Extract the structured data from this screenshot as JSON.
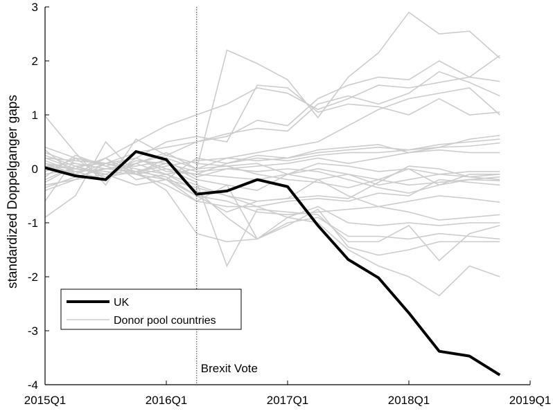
{
  "chart_data": {
    "type": "line",
    "xlabel": "",
    "ylabel": "standardized Doppelganger gaps",
    "ylim": [
      -4,
      3
    ],
    "x_quarters": [
      "2015Q1",
      "2015Q2",
      "2015Q3",
      "2015Q4",
      "2016Q1",
      "2016Q2",
      "2016Q3",
      "2016Q4",
      "2017Q1",
      "2017Q2",
      "2017Q3",
      "2017Q4",
      "2018Q1",
      "2018Q2",
      "2018Q3",
      "2018Q4"
    ],
    "x_ticks": [
      "2015Q1",
      "2016Q1",
      "2017Q1",
      "2018Q1",
      "2019Q1"
    ],
    "x_range": [
      "2015Q1",
      "2019Q1"
    ],
    "y_ticks": [
      "3",
      "2",
      "1",
      "0",
      "-1",
      "-2",
      "-3",
      "-4"
    ],
    "y_tick_values": [
      3,
      2,
      1,
      0,
      -1,
      -2,
      -3,
      -4
    ],
    "grid": false,
    "legend_position": "bottom-left",
    "annotation": {
      "label": "Brexit Vote",
      "x": "2016Q2"
    },
    "highlight_series": {
      "name": "UK",
      "color": "#000000",
      "values": [
        0.02,
        -0.13,
        -0.2,
        0.32,
        0.17,
        -0.47,
        -0.41,
        -0.2,
        -0.33,
        -1.05,
        -1.68,
        -2.02,
        -2.67,
        -3.38,
        -3.47,
        -3.82
      ]
    },
    "donor_series_name": "Donor pool countries",
    "donor_color": "#cccccc",
    "donor_series": [
      [
        0.98,
        0.3,
        -0.3,
        0.55,
        0.25,
        0.1,
        0.05,
        -0.1,
        -0.2,
        -0.25,
        -0.35,
        -0.2,
        -0.3,
        -0.25,
        -0.2,
        -0.15
      ],
      [
        -0.9,
        -0.5,
        0.5,
        -0.1,
        0.2,
        0.0,
        2.2,
        1.95,
        1.65,
        0.95,
        1.7,
        2.15,
        2.9,
        2.5,
        2.55,
        2.05
      ],
      [
        0.2,
        0.15,
        0.1,
        0.3,
        0.4,
        0.5,
        0.6,
        0.9,
        0.8,
        1.3,
        1.55,
        1.7,
        1.65,
        2.0,
        1.7,
        2.1
      ],
      [
        0.35,
        -0.1,
        0.2,
        0.5,
        0.8,
        1.0,
        1.2,
        1.5,
        1.4,
        1.1,
        1.3,
        1.55,
        1.5,
        1.6,
        1.7,
        1.62
      ],
      [
        0.1,
        0.0,
        -0.1,
        0.1,
        0.25,
        0.5,
        0.65,
        0.75,
        0.7,
        1.2,
        1.35,
        1.2,
        1.4,
        1.8,
        1.6,
        1.35
      ],
      [
        -0.6,
        0.2,
        -0.2,
        0.2,
        0.5,
        0.6,
        0.5,
        1.55,
        1.5,
        1.05,
        1.2,
        1.15,
        1.0,
        1.3,
        1.0,
        1.05
      ],
      [
        0.05,
        0.1,
        0.0,
        0.1,
        0.3,
        0.0,
        0.2,
        0.3,
        0.4,
        0.5,
        0.8,
        1.1,
        1.3,
        1.4,
        1.5,
        1.0
      ],
      [
        -0.3,
        -0.2,
        0.1,
        0.0,
        -0.2,
        0.2,
        0.1,
        0.25,
        0.2,
        0.35,
        0.4,
        0.45,
        0.3,
        0.4,
        0.55,
        0.62
      ],
      [
        0.25,
        0.05,
        -0.15,
        -0.05,
        0.05,
        0.15,
        0.2,
        0.15,
        0.2,
        0.3,
        0.35,
        0.4,
        0.35,
        0.45,
        0.5,
        0.55
      ],
      [
        -0.15,
        0.25,
        0.05,
        0.2,
        0.0,
        -0.1,
        0.1,
        0.2,
        0.15,
        0.25,
        0.3,
        0.3,
        0.35,
        0.4,
        0.42,
        0.48
      ],
      [
        0.1,
        -0.1,
        0.2,
        -0.2,
        -0.1,
        0.0,
        0.05,
        0.1,
        -0.1,
        0.1,
        0.05,
        -0.05,
        0.0,
        -0.1,
        -0.05,
        -0.05
      ],
      [
        -0.2,
        0.05,
        -0.1,
        0.15,
        0.1,
        -0.2,
        -0.3,
        -0.4,
        -0.1,
        -0.2,
        -0.1,
        -0.3,
        -0.2,
        -0.1,
        -0.15,
        -0.1
      ],
      [
        0.05,
        -0.1,
        0.1,
        0.0,
        -0.1,
        -0.3,
        -0.5,
        -0.6,
        -0.55,
        -0.5,
        -0.55,
        -0.25,
        0.05,
        0.0,
        -0.15,
        -0.2
      ],
      [
        0.2,
        0.0,
        -0.05,
        -0.1,
        -0.2,
        -0.35,
        -0.5,
        -0.7,
        -0.6,
        -0.55,
        -0.6,
        -0.45,
        -0.5,
        -0.2,
        -0.25,
        -0.3
      ],
      [
        -0.4,
        -0.2,
        -0.1,
        -0.3,
        -0.2,
        -0.5,
        -0.6,
        -0.8,
        -0.85,
        -0.8,
        -0.75,
        -0.7,
        -0.6,
        -0.5,
        -0.55,
        -0.62
      ],
      [
        0.3,
        0.1,
        0.0,
        -0.05,
        -0.15,
        -0.5,
        -0.8,
        -0.6,
        -0.55,
        -0.2,
        -0.5,
        -0.7,
        -0.8,
        -0.95,
        -0.9,
        -0.85
      ],
      [
        -0.1,
        0.0,
        0.2,
        -0.1,
        -0.3,
        -0.6,
        -0.3,
        -1.3,
        -0.9,
        -0.7,
        -1.0,
        -1.05,
        -1.0,
        -1.05,
        -1.0,
        -1.0
      ],
      [
        0.15,
        -0.05,
        -0.2,
        0.1,
        -0.1,
        -0.4,
        -0.9,
        -1.3,
        -1.0,
        -0.9,
        -1.25,
        -1.25,
        -1.3,
        -1.2,
        -1.25,
        -1.3
      ],
      [
        -0.05,
        0.2,
        0.05,
        -0.1,
        0.0,
        -0.25,
        -1.8,
        -0.75,
        -0.8,
        -0.85,
        -1.35,
        -1.35,
        -1.05,
        -1.7,
        -1.2,
        -1.05
      ],
      [
        0.0,
        -0.05,
        0.0,
        -0.05,
        -0.4,
        -1.2,
        -1.35,
        -1.3,
        -1.05,
        -0.75,
        -1.45,
        -1.6,
        -1.5,
        -1.35,
        -1.35,
        -1.35
      ],
      [
        0.05,
        0.0,
        -0.1,
        -0.3,
        -0.2,
        -0.6,
        -0.7,
        -0.7,
        -0.9,
        -1.0,
        -1.5,
        -1.8,
        -2.0,
        -2.35,
        -1.8,
        -2.0
      ],
      [
        -0.25,
        0.05,
        0.1,
        0.2,
        -0.05,
        -0.1,
        -0.15,
        -0.2,
        -0.1,
        0.0,
        -0.1,
        -0.2,
        0.0,
        -0.3,
        -0.1,
        -0.1
      ],
      [
        0.4,
        0.2,
        0.1,
        -0.05,
        0.1,
        -0.05,
        0.0,
        0.05,
        0.1,
        0.2,
        0.1,
        0.2,
        0.3,
        0.35,
        0.3,
        0.3
      ],
      [
        -0.35,
        -0.15,
        0.0,
        0.05,
        0.15,
        -0.15,
        0.0,
        -0.05,
        0.0,
        -0.05,
        -0.2,
        -0.35,
        -0.45,
        -0.3,
        -0.2,
        -0.22
      ]
    ]
  }
}
